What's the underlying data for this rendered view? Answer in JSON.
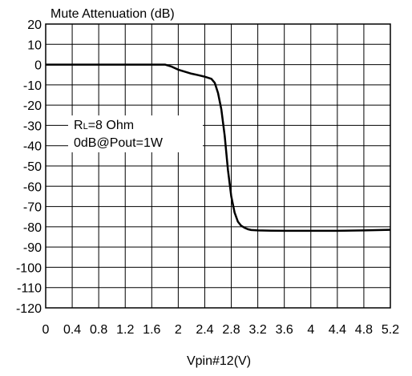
{
  "chart_data": {
    "type": "line",
    "title": "Mute Attenuation (dB)",
    "xlabel": "Vpin#12(V)",
    "ylabel": "",
    "xlim": [
      0,
      5.2
    ],
    "ylim": [
      -120,
      20
    ],
    "x_ticks": [
      "0",
      "0.4",
      "0.8",
      "1.2",
      "1.6",
      "2",
      "2.4",
      "2.8",
      "3.2",
      "3.6",
      "4",
      "4.4",
      "4.8",
      "5.2"
    ],
    "y_ticks": [
      "20",
      "10",
      "0",
      "-10",
      "-20",
      "-30",
      "-40",
      "-50",
      "-60",
      "-70",
      "-80",
      "-90",
      "-100",
      "-110",
      "-120"
    ],
    "grid": true,
    "annotation": {
      "line1_main": "R",
      "line1_sub": "L",
      "line1_rest": "=8 Ohm",
      "line2": "0dB@Pout=1W"
    },
    "series": [
      {
        "color": "#000000",
        "x": [
          0,
          0.4,
          0.8,
          1.2,
          1.6,
          1.8,
          1.9,
          2.0,
          2.1,
          2.2,
          2.3,
          2.4,
          2.5,
          2.55,
          2.6,
          2.65,
          2.7,
          2.75,
          2.8,
          2.85,
          2.9,
          2.95,
          3.0,
          3.05,
          3.1,
          3.2,
          3.4,
          3.6,
          4.0,
          4.4,
          4.8,
          5.2
        ],
        "y": [
          0,
          0,
          0,
          0,
          0,
          0,
          -1,
          -2.5,
          -3.5,
          -4.5,
          -5.2,
          -6,
          -7,
          -9,
          -14,
          -22,
          -35,
          -52,
          -65,
          -73,
          -77.5,
          -79.5,
          -80.5,
          -81.2,
          -81.6,
          -81.8,
          -81.9,
          -82,
          -82,
          -82,
          -81.8,
          -81.5
        ]
      }
    ]
  }
}
